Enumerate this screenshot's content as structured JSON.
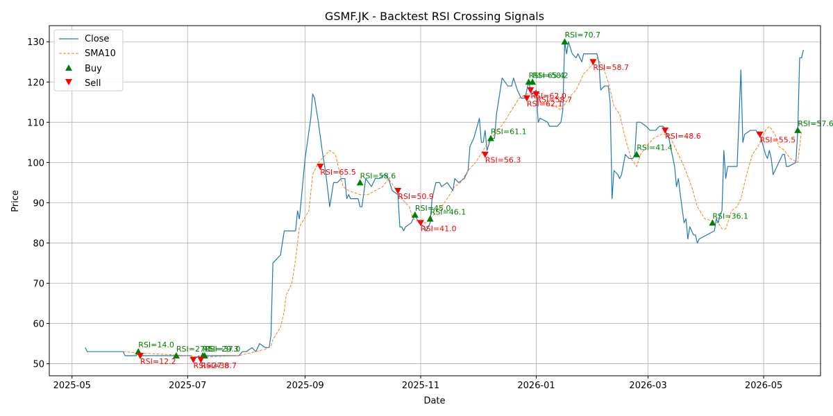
{
  "chart_data": {
    "type": "line",
    "title": "GSMF.JK - Backtest RSI Crossing Signals",
    "xlabel": "Date",
    "ylabel": "Price",
    "xlim": [
      "2025-04-19",
      "2026-05-31"
    ],
    "ylim": [
      47,
      134
    ],
    "grid": true,
    "legend_position": "top-left",
    "x_ticks": [
      "2025-05",
      "2025-07",
      "2025-09",
      "2025-11",
      "2026-01",
      "2026-03",
      "2026-05"
    ],
    "y_ticks": [
      50,
      60,
      70,
      80,
      90,
      100,
      110,
      120,
      130
    ],
    "colors": {
      "close": "#1f77b4",
      "sma": "#ff7f0e",
      "buy": "#008000",
      "sell": "#ff0000"
    },
    "legend": [
      {
        "label": "Close",
        "key": "close"
      },
      {
        "label": "SMA10",
        "key": "sma"
      },
      {
        "label": "Buy",
        "key": "buy"
      },
      {
        "label": "Sell",
        "key": "sell"
      }
    ],
    "close": [
      [
        "2025-05-08",
        54
      ],
      [
        "2025-05-09",
        53
      ],
      [
        "2025-05-28",
        53
      ],
      [
        "2025-05-29",
        52
      ],
      [
        "2025-06-04",
        52
      ],
      [
        "2025-06-05",
        53
      ],
      [
        "2025-06-06",
        52
      ],
      [
        "2025-06-10",
        52
      ],
      [
        "2025-06-20",
        52
      ],
      [
        "2025-06-24",
        52
      ],
      [
        "2025-06-26",
        52
      ],
      [
        "2025-07-03",
        52
      ],
      [
        "2025-07-04",
        51
      ],
      [
        "2025-07-07",
        52
      ],
      [
        "2025-07-08",
        51
      ],
      [
        "2025-07-10",
        52
      ],
      [
        "2025-07-15",
        52
      ],
      [
        "2025-07-28",
        52
      ],
      [
        "2025-07-30",
        53
      ],
      [
        "2025-08-01",
        53
      ],
      [
        "2025-08-04",
        54
      ],
      [
        "2025-08-06",
        53
      ],
      [
        "2025-08-08",
        55
      ],
      [
        "2025-08-11",
        54
      ],
      [
        "2025-08-13",
        54
      ],
      [
        "2025-08-14",
        57
      ],
      [
        "2025-08-15",
        75
      ],
      [
        "2025-08-19",
        77
      ],
      [
        "2025-08-21",
        83
      ],
      [
        "2025-08-27",
        83
      ],
      [
        "2025-08-28",
        88
      ],
      [
        "2025-08-29",
        86
      ],
      [
        "2025-09-01",
        101
      ],
      [
        "2025-09-04",
        111
      ],
      [
        "2025-09-05",
        117
      ],
      [
        "2025-09-06",
        116
      ],
      [
        "2025-09-08",
        110
      ],
      [
        "2025-09-10",
        103
      ],
      [
        "2025-09-12",
        97
      ],
      [
        "2025-09-14",
        89
      ],
      [
        "2025-09-16",
        95
      ],
      [
        "2025-09-18",
        95
      ],
      [
        "2025-09-20",
        96
      ],
      [
        "2025-09-22",
        96
      ],
      [
        "2025-09-23",
        91
      ],
      [
        "2025-09-24",
        92
      ],
      [
        "2025-09-25",
        91
      ],
      [
        "2025-09-29",
        91
      ],
      [
        "2025-09-30",
        89
      ],
      [
        "2025-10-01",
        89
      ],
      [
        "2025-10-03",
        96
      ],
      [
        "2025-10-06",
        94
      ],
      [
        "2025-10-08",
        96
      ],
      [
        "2025-10-10",
        96
      ],
      [
        "2025-10-13",
        97
      ],
      [
        "2025-10-15",
        96
      ],
      [
        "2025-10-17",
        93
      ],
      [
        "2025-10-20",
        92
      ],
      [
        "2025-10-21",
        84
      ],
      [
        "2025-10-22",
        84
      ],
      [
        "2025-10-23",
        83
      ],
      [
        "2025-10-24",
        84
      ],
      [
        "2025-10-27",
        85
      ],
      [
        "2025-10-29",
        87
      ],
      [
        "2025-10-31",
        85
      ],
      [
        "2025-11-03",
        84
      ],
      [
        "2025-11-04",
        83
      ],
      [
        "2025-11-06",
        85
      ],
      [
        "2025-11-07",
        91
      ],
      [
        "2025-11-09",
        95
      ],
      [
        "2025-11-11",
        95
      ],
      [
        "2025-11-12",
        94
      ],
      [
        "2025-11-15",
        95
      ],
      [
        "2025-11-18",
        93
      ],
      [
        "2025-11-19",
        96
      ],
      [
        "2025-11-21",
        95
      ],
      [
        "2025-11-24",
        96
      ],
      [
        "2025-11-26",
        98
      ],
      [
        "2025-11-27",
        104
      ],
      [
        "2025-11-29",
        106
      ],
      [
        "2025-12-02",
        111
      ],
      [
        "2025-12-03",
        105
      ],
      [
        "2025-12-04",
        105
      ],
      [
        "2025-12-05",
        108
      ],
      [
        "2025-12-06",
        103
      ],
      [
        "2025-12-08",
        106
      ],
      [
        "2025-12-10",
        106
      ],
      [
        "2025-12-11",
        112
      ],
      [
        "2025-12-12",
        115
      ],
      [
        "2025-12-14",
        121
      ],
      [
        "2025-12-17",
        119
      ],
      [
        "2025-12-19",
        119
      ],
      [
        "2025-12-20",
        121
      ],
      [
        "2025-12-22",
        118
      ],
      [
        "2025-12-24",
        116
      ],
      [
        "2025-12-26",
        116
      ],
      [
        "2025-12-28",
        120
      ],
      [
        "2025-12-29",
        118
      ],
      [
        "2025-12-30",
        117
      ],
      [
        "2026-01-01",
        118
      ],
      [
        "2026-01-02",
        110
      ],
      [
        "2026-01-03",
        111
      ],
      [
        "2026-01-07",
        110
      ],
      [
        "2026-01-08",
        109
      ],
      [
        "2026-01-12",
        109
      ],
      [
        "2026-01-14",
        110
      ],
      [
        "2026-01-15",
        113
      ],
      [
        "2026-01-16",
        130
      ],
      [
        "2026-01-17",
        127
      ],
      [
        "2026-01-18",
        130
      ],
      [
        "2026-01-20",
        127
      ],
      [
        "2026-01-22",
        126
      ],
      [
        "2026-01-23",
        127
      ],
      [
        "2026-01-25",
        125
      ],
      [
        "2026-01-26",
        127
      ],
      [
        "2026-01-28",
        127
      ],
      [
        "2026-01-30",
        127
      ],
      [
        "2026-02-02",
        127
      ],
      [
        "2026-02-03",
        125
      ],
      [
        "2026-02-04",
        118
      ],
      [
        "2026-02-06",
        119
      ],
      [
        "2026-02-08",
        119
      ],
      [
        "2026-02-09",
        115
      ],
      [
        "2026-02-10",
        91
      ],
      [
        "2026-02-11",
        98
      ],
      [
        "2026-02-13",
        97
      ],
      [
        "2026-02-14",
        96
      ],
      [
        "2026-02-15",
        97
      ],
      [
        "2026-02-17",
        102
      ],
      [
        "2026-02-19",
        101
      ],
      [
        "2026-02-21",
        101
      ],
      [
        "2026-02-22",
        102
      ],
      [
        "2026-02-23",
        110
      ],
      [
        "2026-02-25",
        110
      ],
      [
        "2026-02-28",
        109
      ],
      [
        "2026-03-02",
        108
      ],
      [
        "2026-03-05",
        108
      ],
      [
        "2026-03-07",
        109
      ],
      [
        "2026-03-09",
        109
      ],
      [
        "2026-03-10",
        108
      ],
      [
        "2026-03-12",
        106
      ],
      [
        "2026-03-15",
        99
      ],
      [
        "2026-03-16",
        94
      ],
      [
        "2026-03-17",
        96
      ],
      [
        "2026-03-18",
        92
      ],
      [
        "2026-03-20",
        85
      ],
      [
        "2026-03-21",
        86
      ],
      [
        "2026-03-22",
        81
      ],
      [
        "2026-03-23",
        84
      ],
      [
        "2026-03-25",
        82
      ],
      [
        "2026-03-26",
        82
      ],
      [
        "2026-03-27",
        80
      ],
      [
        "2026-03-28",
        81
      ],
      [
        "2026-04-05",
        83
      ],
      [
        "2026-04-06",
        86
      ],
      [
        "2026-04-07",
        85
      ],
      [
        "2026-04-08",
        87
      ],
      [
        "2026-04-09",
        88
      ],
      [
        "2026-04-10",
        103
      ],
      [
        "2026-04-11",
        96
      ],
      [
        "2026-04-12",
        99
      ],
      [
        "2026-04-15",
        99
      ],
      [
        "2026-04-16",
        99
      ],
      [
        "2026-04-17",
        99
      ],
      [
        "2026-04-19",
        123
      ],
      [
        "2026-04-20",
        105
      ],
      [
        "2026-04-21",
        107
      ],
      [
        "2026-04-24",
        108
      ],
      [
        "2026-04-27",
        108
      ],
      [
        "2026-04-28",
        107
      ],
      [
        "2026-04-29",
        107
      ],
      [
        "2026-05-02",
        102
      ],
      [
        "2026-05-03",
        101
      ],
      [
        "2026-05-04",
        103
      ],
      [
        "2026-05-05",
        101
      ],
      [
        "2026-05-06",
        97
      ],
      [
        "2026-05-08",
        99
      ],
      [
        "2026-05-09",
        100
      ],
      [
        "2026-05-11",
        102
      ],
      [
        "2026-05-12",
        102
      ],
      [
        "2026-05-13",
        99
      ],
      [
        "2026-05-14",
        99
      ],
      [
        "2026-05-18",
        100
      ],
      [
        "2026-05-19",
        108
      ],
      [
        "2026-05-20",
        126
      ],
      [
        "2026-05-21",
        126
      ],
      [
        "2026-05-22",
        128
      ]
    ],
    "sma10": [
      [
        "2025-05-28",
        53
      ],
      [
        "2025-06-04",
        52.7
      ],
      [
        "2025-06-12",
        52.5
      ],
      [
        "2025-06-24",
        52.2
      ],
      [
        "2025-07-03",
        51.9
      ],
      [
        "2025-07-08",
        51.6
      ],
      [
        "2025-07-15",
        51.8
      ],
      [
        "2025-07-28",
        52
      ],
      [
        "2025-08-04",
        52.8
      ],
      [
        "2025-08-11",
        53.6
      ],
      [
        "2025-08-14",
        54.3
      ],
      [
        "2025-08-15",
        56
      ],
      [
        "2025-08-19",
        59
      ],
      [
        "2025-08-21",
        63
      ],
      [
        "2025-08-22",
        67
      ],
      [
        "2025-08-25",
        70
      ],
      [
        "2025-08-27",
        76
      ],
      [
        "2025-08-29",
        84
      ],
      [
        "2025-09-03",
        88
      ],
      [
        "2025-09-05",
        97
      ],
      [
        "2025-09-08",
        100
      ],
      [
        "2025-09-10",
        101
      ],
      [
        "2025-09-14",
        103
      ],
      [
        "2025-09-17",
        102
      ],
      [
        "2025-09-19",
        98
      ],
      [
        "2025-09-21",
        94
      ],
      [
        "2025-09-24",
        93
      ],
      [
        "2025-09-30",
        92
      ],
      [
        "2025-10-04",
        92
      ],
      [
        "2025-10-08",
        93
      ],
      [
        "2025-10-12",
        94
      ],
      [
        "2025-10-15",
        96
      ],
      [
        "2025-10-18",
        94
      ],
      [
        "2025-10-22",
        91
      ],
      [
        "2025-10-26",
        89
      ],
      [
        "2025-10-28",
        86
      ],
      [
        "2025-11-01",
        85
      ],
      [
        "2025-11-04",
        85
      ],
      [
        "2025-11-07",
        86.5
      ],
      [
        "2025-11-12",
        89
      ],
      [
        "2025-11-15",
        91
      ],
      [
        "2025-11-19",
        94
      ],
      [
        "2025-11-22",
        95
      ],
      [
        "2025-11-26",
        98
      ],
      [
        "2025-11-30",
        100
      ],
      [
        "2025-12-04",
        103
      ],
      [
        "2025-12-08",
        106
      ],
      [
        "2025-12-12",
        108
      ],
      [
        "2025-12-15",
        110
      ],
      [
        "2025-12-19",
        113
      ],
      [
        "2025-12-23",
        116
      ],
      [
        "2025-12-27",
        117
      ],
      [
        "2025-12-30",
        117
      ],
      [
        "2026-01-03",
        115
      ],
      [
        "2026-01-07",
        114.5
      ],
      [
        "2026-01-11",
        114
      ],
      [
        "2026-01-14",
        113
      ],
      [
        "2026-01-18",
        116
      ],
      [
        "2026-01-22",
        118
      ],
      [
        "2026-01-26",
        122
      ],
      [
        "2026-01-30",
        124
      ],
      [
        "2026-02-02",
        126
      ],
      [
        "2026-02-05",
        124
      ],
      [
        "2026-02-08",
        120
      ],
      [
        "2026-02-11",
        114
      ],
      [
        "2026-02-14",
        112
      ],
      [
        "2026-02-17",
        106
      ],
      [
        "2026-02-20",
        101
      ],
      [
        "2026-02-23",
        99
      ],
      [
        "2026-02-25",
        102
      ],
      [
        "2026-02-28",
        104
      ],
      [
        "2026-03-04",
        106
      ],
      [
        "2026-03-08",
        107
      ],
      [
        "2026-03-12",
        107
      ],
      [
        "2026-03-16",
        103
      ],
      [
        "2026-03-20",
        99
      ],
      [
        "2026-03-24",
        94
      ],
      [
        "2026-03-27",
        89
      ],
      [
        "2026-03-31",
        86
      ],
      [
        "2026-04-04",
        85.5
      ],
      [
        "2026-04-07",
        85
      ],
      [
        "2026-04-09",
        83.5
      ],
      [
        "2026-04-11",
        83.5
      ],
      [
        "2026-04-14",
        88
      ],
      [
        "2026-04-17",
        89
      ],
      [
        "2026-04-19",
        91
      ],
      [
        "2026-04-22",
        97
      ],
      [
        "2026-04-25",
        102
      ],
      [
        "2026-04-28",
        104
      ],
      [
        "2026-04-30",
        106
      ],
      [
        "2026-05-02",
        108
      ],
      [
        "2026-05-04",
        109
      ],
      [
        "2026-05-07",
        107
      ],
      [
        "2026-05-09",
        104
      ],
      [
        "2026-05-12",
        103
      ],
      [
        "2026-05-15",
        101
      ],
      [
        "2026-05-19",
        100
      ],
      [
        "2026-05-21",
        108
      ]
    ],
    "buy_signals": [
      {
        "date": "2025-06-05",
        "price": 53,
        "label": "RSI=14.0"
      },
      {
        "date": "2025-06-25",
        "price": 52,
        "label": "RSI=27.1"
      },
      {
        "date": "2025-07-09",
        "price": 52,
        "label": "RSI=29.3"
      },
      {
        "date": "2025-07-10",
        "price": 52,
        "label": "RSI=37.0"
      },
      {
        "date": "2025-09-30",
        "price": 95,
        "label": "RSI=58.6"
      },
      {
        "date": "2025-10-29",
        "price": 87,
        "label": "RSI=45.0"
      },
      {
        "date": "2025-11-06",
        "price": 86,
        "label": "RSI=46.1"
      },
      {
        "date": "2025-12-08",
        "price": 106,
        "label": "RSI=61.1"
      },
      {
        "date": "2025-12-28",
        "price": 120,
        "label": "RSI=65.4"
      },
      {
        "date": "2025-12-30",
        "price": 120,
        "label": "RSI=58.2"
      },
      {
        "date": "2026-01-16",
        "price": 130,
        "label": "RSI=70.7"
      },
      {
        "date": "2026-02-23",
        "price": 102,
        "label": "RSI=41.4"
      },
      {
        "date": "2026-04-04",
        "price": 85,
        "label": "RSI=36.1"
      },
      {
        "date": "2026-05-19",
        "price": 108,
        "label": "RSI=57.6"
      }
    ],
    "sell_signals": [
      {
        "date": "2025-06-06",
        "price": 52,
        "label": "RSI=12.2"
      },
      {
        "date": "2025-07-04",
        "price": 51,
        "label": "RSI=27.8"
      },
      {
        "date": "2025-07-08",
        "price": 51,
        "label": "RSI=38.7"
      },
      {
        "date": "2025-09-09",
        "price": 99,
        "label": "RSI=65.5"
      },
      {
        "date": "2025-10-20",
        "price": 93,
        "label": "RSI=50.9"
      },
      {
        "date": "2025-11-01",
        "price": 85,
        "label": "RSI=41.0"
      },
      {
        "date": "2025-12-05",
        "price": 102,
        "label": "RSI=56.3"
      },
      {
        "date": "2025-12-27",
        "price": 116,
        "label": "RSI=62.1"
      },
      {
        "date": "2025-12-29",
        "price": 118,
        "label": "RSI=62.0"
      },
      {
        "date": "2026-01-01",
        "price": 117,
        "label": "RSI=58.7"
      },
      {
        "date": "2026-01-31",
        "price": 125,
        "label": "RSI=58.7"
      },
      {
        "date": "2026-03-10",
        "price": 108,
        "label": "RSI=48.6"
      },
      {
        "date": "2026-04-29",
        "price": 107,
        "label": "RSI=55.5"
      }
    ]
  }
}
